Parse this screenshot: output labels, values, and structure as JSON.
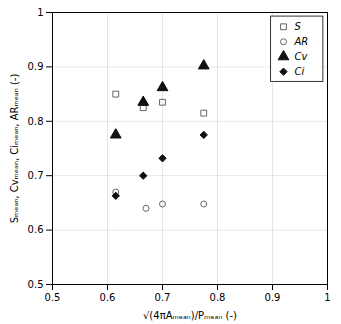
{
  "chart_data": {
    "type": "scatter",
    "x_label": "√(4πAₘₑₐₙ)/Pₘₑₐₙ (-)",
    "y_label": "Sₘₑₐₙ, Cvₘₑₐₙ, Ciₘₑₐₙ, ARₘₑₐₙ (-)",
    "series": [
      {
        "name": "S",
        "x": [
          0.615,
          0.665,
          0.7,
          0.775
        ],
        "values": [
          0.85,
          0.825,
          0.835,
          0.815
        ],
        "color": "#666666",
        "marker": "square-open"
      },
      {
        "name": "AR",
        "x": [
          0.615,
          0.67,
          0.7,
          0.775
        ],
        "values": [
          0.67,
          0.64,
          0.648,
          0.648
        ],
        "color": "#666666",
        "marker": "circle-open"
      },
      {
        "name": "Cv",
        "x": [
          0.615,
          0.665,
          0.7,
          0.775
        ],
        "values": [
          0.775,
          0.835,
          0.862,
          0.902
        ],
        "color": "#111111",
        "marker": "triangle"
      },
      {
        "name": "Ci",
        "x": [
          0.615,
          0.665,
          0.7,
          0.775
        ],
        "values": [
          0.663,
          0.7,
          0.732,
          0.775
        ],
        "color": "#111111",
        "marker": "diamond"
      }
    ],
    "xlim": [
      0.5,
      1.0
    ],
    "ylim": [
      0.5,
      1.0
    ],
    "xticks": [
      0.5,
      0.6,
      0.7,
      0.8,
      0.9,
      1
    ],
    "yticks": [
      0.5,
      0.6,
      0.7,
      0.8,
      0.9,
      1
    ],
    "grid": true,
    "legend": "upper right"
  }
}
